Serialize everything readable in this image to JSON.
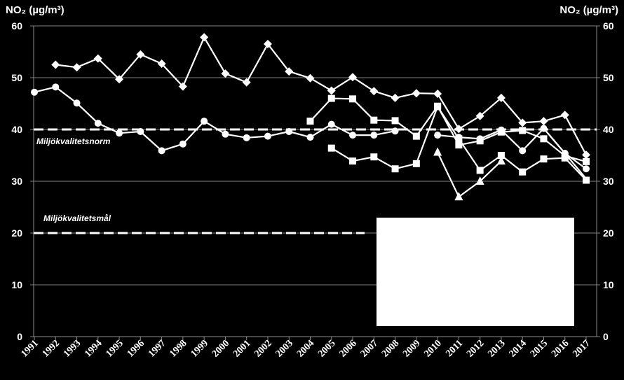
{
  "chart_data": {
    "type": "line",
    "ylabel_left": "NO₂ (µg/m³)",
    "ylabel_right": "NO₂ (µg/m³)",
    "ylim": [
      0,
      60
    ],
    "yticks": [
      0,
      10,
      20,
      30,
      40,
      50,
      60
    ],
    "x": [
      1991,
      1992,
      1993,
      1994,
      1995,
      1996,
      1997,
      1998,
      1999,
      2000,
      2001,
      2002,
      2003,
      2004,
      2005,
      2006,
      2007,
      2008,
      2009,
      2010,
      2011,
      2012,
      2013,
      2014,
      2015,
      2016,
      2017
    ],
    "grid": true,
    "series": [
      {
        "marker": "diamond",
        "values": [
          null,
          52.5,
          52,
          53.7,
          49.7,
          54.5,
          52.7,
          48.3,
          57.8,
          50.8,
          49.1,
          56.5,
          51.2,
          49.9,
          47.5,
          50.1,
          47.4,
          46.1,
          47,
          46.9,
          40.1,
          42.6,
          46.1,
          41.3,
          41.6,
          42.8,
          35.1
        ]
      },
      {
        "marker": "circle",
        "values": [
          47.2,
          48.2,
          45.1,
          41.2,
          39.3,
          39.6,
          35.9,
          37.2,
          41.6,
          39.1,
          38.4,
          38.7,
          39.6,
          38.5,
          41,
          38.9,
          38.9,
          39.7,
          null,
          38.9,
          38.5,
          38.2,
          39.9,
          35.9,
          40.2,
          35.4,
          32.4
        ]
      },
      {
        "marker": "square",
        "values": [
          null,
          null,
          null,
          null,
          null,
          null,
          null,
          null,
          null,
          null,
          null,
          null,
          null,
          41.6,
          46,
          45.9,
          41.8,
          41.7,
          38.7,
          44.5,
          37,
          37.8,
          39.5,
          39.8,
          38.2,
          34.9,
          33.8
        ]
      },
      {
        "marker": "square",
        "values": [
          null,
          null,
          null,
          null,
          null,
          null,
          null,
          null,
          null,
          null,
          null,
          null,
          null,
          null,
          36.4,
          33.9,
          34.7,
          32.4,
          33.4,
          44.4,
          38.2,
          32.1,
          35,
          31.8,
          34.3,
          34.5,
          30.2
        ]
      },
      {
        "marker": "triangle",
        "values": [
          null,
          null,
          null,
          null,
          null,
          null,
          null,
          null,
          null,
          null,
          null,
          null,
          null,
          null,
          null,
          null,
          null,
          null,
          null,
          35.6,
          27,
          30,
          33.9,
          null,
          null,
          null,
          null
        ]
      },
      {
        "marker": "none",
        "values": [
          null,
          null,
          null,
          null,
          null,
          null,
          null,
          null,
          null,
          null,
          null,
          null,
          null,
          null,
          null,
          null,
          null,
          null,
          null,
          null,
          null,
          null,
          null,
          null,
          40.2,
          35.4,
          30.5
        ]
      }
    ],
    "reference_lines": [
      {
        "value": 40,
        "label": "Miljökvalitetsnorm",
        "style": "dashed"
      },
      {
        "value": 20,
        "label": "Miljökvalitetsmål",
        "style": "dashed"
      }
    ]
  }
}
